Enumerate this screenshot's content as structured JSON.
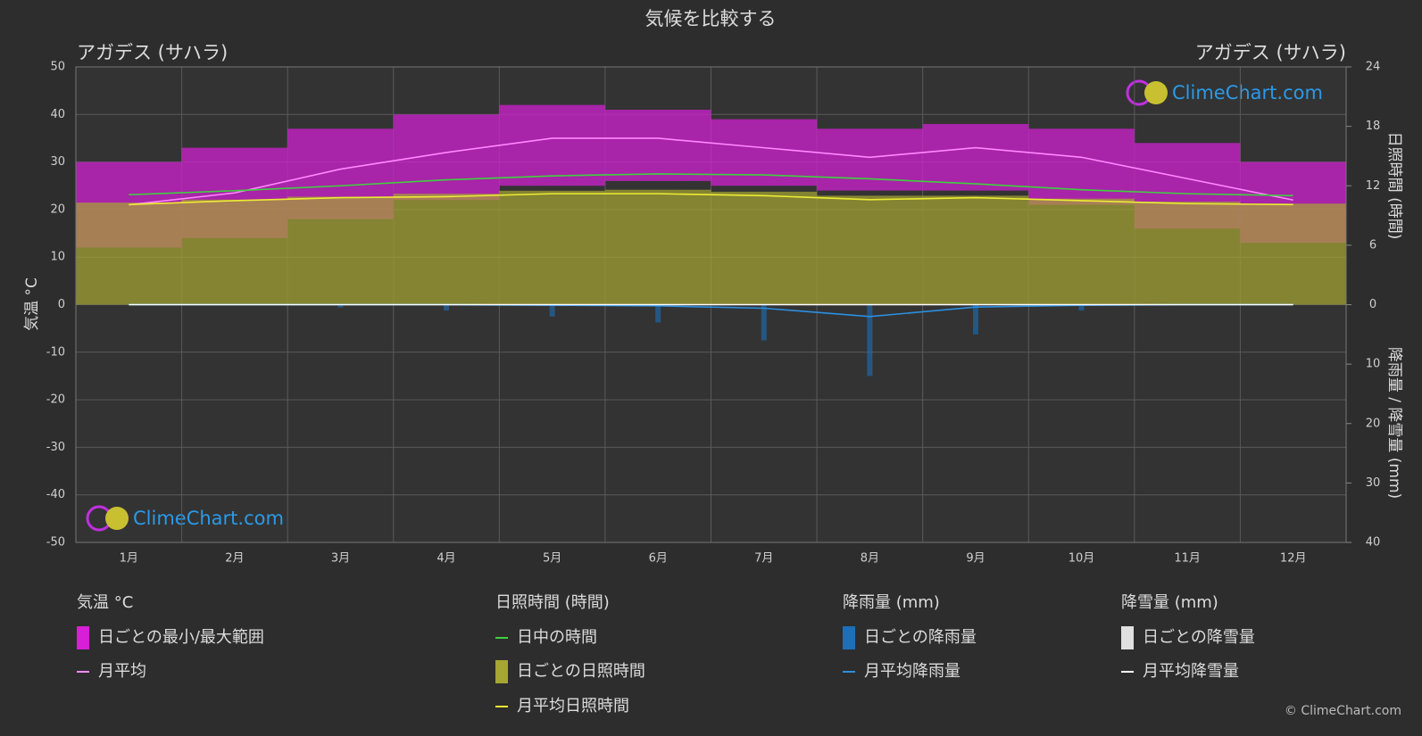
{
  "chart_data": {
    "type": "climate",
    "title": "気候を比較する",
    "location_left": "アガデス (サハラ)",
    "location_right": "アガデス (サハラ)",
    "categories": [
      "1月",
      "2月",
      "3月",
      "4月",
      "5月",
      "6月",
      "7月",
      "8月",
      "9月",
      "10月",
      "11月",
      "12月"
    ],
    "ylabel": "気温 °C",
    "ylim": [
      -50,
      50
    ],
    "yticks": [
      -50,
      -40,
      -30,
      -20,
      -10,
      0,
      10,
      20,
      30,
      40,
      50
    ],
    "y2label": "日照時間 (時間)",
    "y2lim": [
      0,
      24
    ],
    "y2ticks": [
      0,
      6,
      12,
      18,
      24
    ],
    "y3label": "降雨量 / 降雪量 (mm)",
    "y3lim": [
      0,
      40
    ],
    "y3ticks": [
      10,
      20,
      30,
      40
    ],
    "grid": true,
    "watermark": "ClimeChart.com",
    "copyright": "© ClimeChart.com",
    "groups": [
      {
        "title": "気温 °C",
        "series": [
          {
            "name": "日ごとの最小/最大範囲",
            "type": "range",
            "axis": "y",
            "color": "#d61fd6",
            "values": [
              30,
              33,
              37,
              40,
              42,
              41,
              39,
              37,
              38,
              37,
              34,
              30
            ],
            "low": [
              12,
              14,
              18,
              22,
              25,
              26,
              25,
              24,
              24,
              21,
              16,
              13
            ]
          },
          {
            "name": "月平均",
            "type": "line",
            "axis": "y",
            "color": "#ff88ff",
            "values": [
              21,
              23.5,
              28.5,
              32,
              35,
              35,
              33,
              31,
              33,
              31,
              26.5,
              22
            ]
          }
        ]
      },
      {
        "title": "日照時間 (時間)",
        "series": [
          {
            "name": "日中の時間",
            "type": "line",
            "axis": "y2",
            "color": "#3ed23e",
            "values": [
              11.1,
              11.5,
              12.0,
              12.6,
              13.0,
              13.2,
              13.1,
              12.7,
              12.2,
              11.6,
              11.2,
              11.0
            ]
          },
          {
            "name": "日ごとの日照時間",
            "type": "area",
            "axis": "y2",
            "color": "#a6a632",
            "values": [
              10.3,
              10.6,
              10.9,
              11.2,
              11.5,
              11.6,
              11.4,
              11.0,
              11.0,
              10.7,
              10.4,
              10.2
            ]
          },
          {
            "name": "月平均日照時間",
            "type": "line",
            "axis": "y2",
            "color": "#ecec34",
            "values": [
              10.1,
              10.5,
              10.8,
              10.9,
              11.2,
              11.2,
              11.0,
              10.6,
              10.8,
              10.5,
              10.2,
              10.1
            ]
          }
        ]
      },
      {
        "title": "降雨量 (mm)",
        "series": [
          {
            "name": "日ごとの降雨量",
            "type": "bars",
            "axis": "y3",
            "color": "#1c6fb8",
            "values": [
              0,
              0,
              0.5,
              1,
              2,
              3,
              6,
              12,
              5,
              1,
              0,
              0
            ]
          },
          {
            "name": "月平均降雨量",
            "type": "line",
            "axis": "y3",
            "color": "#2b8fe0",
            "values": [
              0,
              0,
              0,
              0,
              0.1,
              0.2,
              0.6,
              2.0,
              0.4,
              0.1,
              0,
              0
            ]
          }
        ]
      },
      {
        "title": "降雪量 (mm)",
        "series": [
          {
            "name": "日ごとの降雪量",
            "type": "bars",
            "axis": "y3",
            "color": "#e0e0e0",
            "values": [
              0,
              0,
              0,
              0,
              0,
              0,
              0,
              0,
              0,
              0,
              0,
              0
            ]
          },
          {
            "name": "月平均降雪量",
            "type": "line",
            "axis": "y3",
            "color": "#ffffff",
            "values": [
              0,
              0,
              0,
              0,
              0,
              0,
              0,
              0,
              0,
              0,
              0,
              0
            ]
          }
        ]
      }
    ]
  }
}
